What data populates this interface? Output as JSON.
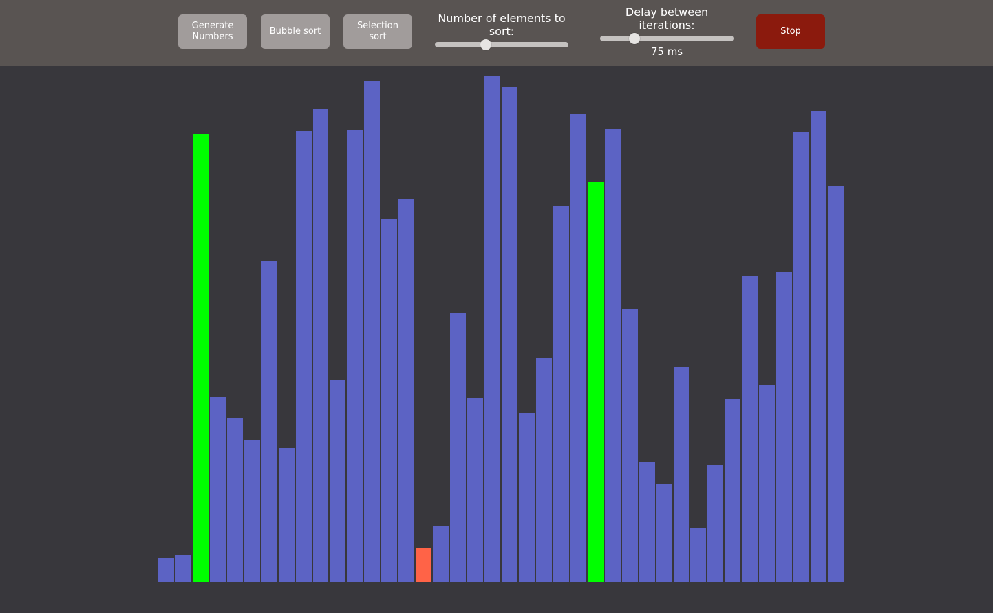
{
  "toolbar": {
    "generate_label": "Generate Numbers",
    "bubble_label": "Bubble sort",
    "selection_label": "Selection sort",
    "elements_label": "Number of elements to sort:",
    "elements_slider_fraction": 0.38,
    "delay_label": "Delay between iterations:",
    "delay_slider_fraction": 0.26,
    "delay_value": "75 ms",
    "stop_label": "Stop"
  },
  "colors": {
    "default": "#5c63c4",
    "compare": "#00ff00",
    "current": "#ff6347"
  },
  "chart_data": {
    "type": "bar",
    "max": 661,
    "values": [
      31,
      35,
      585,
      242,
      215,
      185,
      419,
      175,
      588,
      618,
      264,
      590,
      654,
      473,
      500,
      44,
      73,
      351,
      241,
      661,
      647,
      221,
      293,
      490,
      611,
      522,
      591,
      357,
      157,
      128,
      281,
      70,
      153,
      239,
      400,
      257,
      405,
      587,
      614,
      517
    ],
    "states": [
      "default",
      "default",
      "compare",
      "default",
      "default",
      "default",
      "default",
      "default",
      "default",
      "default",
      "default",
      "default",
      "default",
      "default",
      "default",
      "current",
      "default",
      "default",
      "default",
      "default",
      "default",
      "default",
      "default",
      "default",
      "default",
      "compare",
      "default",
      "default",
      "default",
      "default",
      "default",
      "default",
      "default",
      "default",
      "default",
      "default",
      "default",
      "default",
      "default",
      "default"
    ]
  }
}
